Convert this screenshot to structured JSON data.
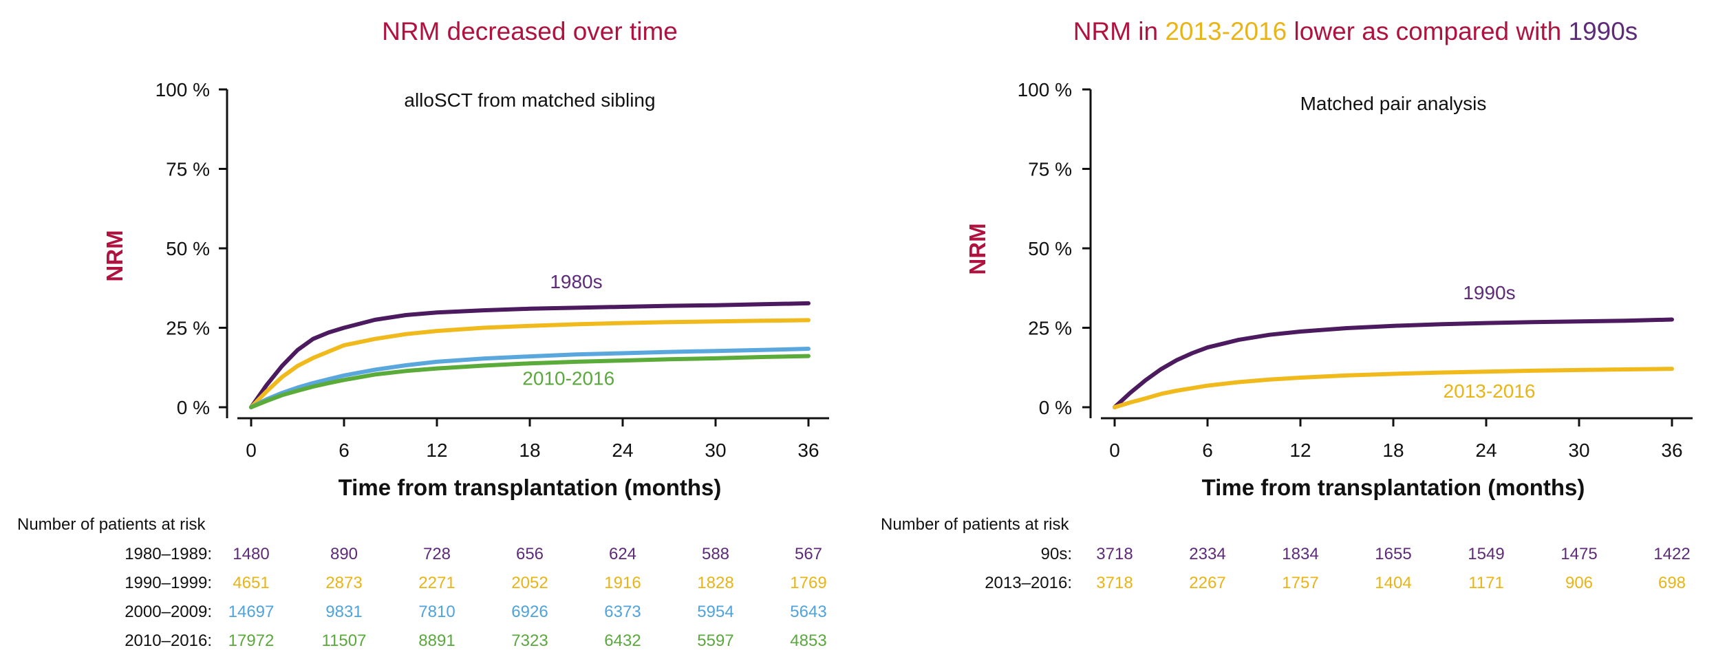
{
  "colors": {
    "title": "#b0123f",
    "1980s": "#4c1a5e",
    "1990s": "#f0b91c",
    "2000s": "#5aa7de",
    "2010s": "#5aab3a",
    "purple_text": "#5e2a7a",
    "gold_text": "#e8b416",
    "blue_text": "#4fa3dc",
    "green_text": "#5aa83e"
  },
  "chart_data": [
    {
      "type": "line",
      "title": "NRM decreased over time",
      "subtitle": "alloSCT from matched sibling",
      "xlabel": "Time from transplantation (months)",
      "ylabel": "NRM",
      "xlim": [
        0,
        36
      ],
      "ylim": [
        0,
        100
      ],
      "x_ticks": [
        0,
        6,
        12,
        18,
        24,
        30,
        36
      ],
      "y_ticks": [
        "0 %",
        "25 %",
        "50 %",
        "75 %",
        "100 %"
      ],
      "x": [
        0,
        1,
        2,
        3,
        4,
        5,
        6,
        8,
        10,
        12,
        15,
        18,
        21,
        24,
        27,
        30,
        33,
        36
      ],
      "series": [
        {
          "key": "s1980",
          "color_key": "1980s",
          "values": [
            0,
            7,
            13,
            18,
            21.5,
            23.5,
            25,
            27.5,
            29,
            29.8,
            30.5,
            31,
            31.3,
            31.6,
            31.9,
            32.1,
            32.4,
            32.7
          ]
        },
        {
          "key": "s1990",
          "color_key": "1990s",
          "values": [
            0,
            5,
            9.5,
            13,
            15.5,
            17.5,
            19.5,
            21.5,
            23,
            24,
            25,
            25.6,
            26.1,
            26.5,
            26.8,
            27,
            27.2,
            27.4
          ]
        },
        {
          "key": "s2000",
          "color_key": "2000s",
          "values": [
            0,
            2.5,
            4.5,
            6.2,
            7.6,
            8.8,
            10,
            11.8,
            13.2,
            14.3,
            15.3,
            16,
            16.6,
            17,
            17.4,
            17.7,
            18,
            18.4
          ]
        },
        {
          "key": "s2010",
          "color_key": "2010s",
          "values": [
            0,
            2,
            3.8,
            5.2,
            6.5,
            7.6,
            8.6,
            10.3,
            11.4,
            12.2,
            13.1,
            13.8,
            14.3,
            14.7,
            15.1,
            15.4,
            15.8,
            16.1
          ]
        }
      ],
      "curve_labels": [
        {
          "text": "1980s",
          "x": 21,
          "y": 37.5,
          "color_key": "purple_text"
        },
        {
          "text": "2010-2016",
          "x": 20.5,
          "y": 7,
          "color_key": "green_text"
        }
      ],
      "risk_table": {
        "header": "Number of patients at risk",
        "rows": [
          {
            "label": "1980–1989:",
            "color_key": "purple_text",
            "values": [
              "1480",
              "890",
              "728",
              "656",
              "624",
              "588",
              "567"
            ]
          },
          {
            "label": "1990–1999:",
            "color_key": "gold_text",
            "values": [
              "4651",
              "2873",
              "2271",
              "2052",
              "1916",
              "1828",
              "1769"
            ]
          },
          {
            "label": "2000–2009:",
            "color_key": "blue_text",
            "values": [
              "14697",
              "9831",
              "7810",
              "6926",
              "6373",
              "5954",
              "5643"
            ]
          },
          {
            "label": "2010–2016:",
            "color_key": "green_text",
            "values": [
              "17972",
              "11507",
              "8891",
              "7323",
              "6432",
              "5597",
              "4853"
            ]
          }
        ]
      }
    },
    {
      "type": "line",
      "title_parts": [
        {
          "text": "NRM in ",
          "color_key": "title"
        },
        {
          "text": "2013-2016",
          "color_key": "gold_text"
        },
        {
          "text": " lower as compared with ",
          "color_key": "title"
        },
        {
          "text": "1990s",
          "color_key": "purple_text"
        }
      ],
      "subtitle": "Matched pair analysis",
      "xlabel": "Time from transplantation (months)",
      "ylabel": "NRM",
      "xlim": [
        0,
        36
      ],
      "ylim": [
        0,
        100
      ],
      "x_ticks": [
        0,
        6,
        12,
        18,
        24,
        30,
        36
      ],
      "y_ticks": [
        "0 %",
        "25 %",
        "50 %",
        "75 %",
        "100 %"
      ],
      "x": [
        0,
        1,
        2,
        3,
        4,
        5,
        6,
        8,
        10,
        12,
        15,
        18,
        21,
        24,
        27,
        30,
        33,
        36
      ],
      "series": [
        {
          "key": "s1990s",
          "color_key": "1980s",
          "values": [
            0,
            4.5,
            8.5,
            12,
            14.8,
            17,
            18.8,
            21.2,
            22.8,
            23.8,
            24.9,
            25.6,
            26.1,
            26.5,
            26.8,
            27,
            27.2,
            27.6
          ]
        },
        {
          "key": "s2013",
          "color_key": "1990s",
          "values": [
            0,
            1.5,
            2.8,
            4.2,
            5.2,
            6,
            6.8,
            7.9,
            8.7,
            9.3,
            10,
            10.5,
            10.9,
            11.2,
            11.5,
            11.7,
            11.9,
            12.1
          ]
        }
      ],
      "curve_labels": [
        {
          "text": "1990s",
          "x": 24.2,
          "y": 34,
          "color_key": "purple_text"
        },
        {
          "text": "2013-2016",
          "x": 24.2,
          "y": 3,
          "color_key": "gold_text"
        }
      ],
      "risk_table": {
        "header": "Number of patients at risk",
        "rows": [
          {
            "label": "90s:",
            "color_key": "purple_text",
            "values": [
              "3718",
              "2334",
              "1834",
              "1655",
              "1549",
              "1475",
              "1422"
            ]
          },
          {
            "label": "2013–2016:",
            "color_key": "gold_text",
            "values": [
              "3718",
              "2267",
              "1757",
              "1404",
              "1171",
              "906",
              "698"
            ]
          }
        ]
      }
    }
  ]
}
